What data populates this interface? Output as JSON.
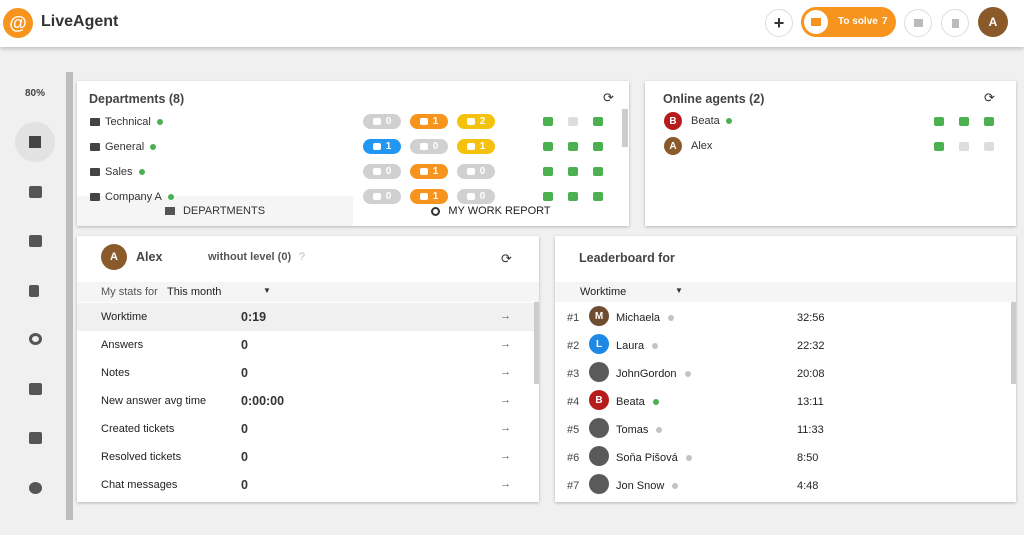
{
  "header": {
    "logo": "LiveAgent",
    "to_solve": "To solve",
    "to_solve_count": 7,
    "avatar": "A"
  },
  "sidebar": {
    "zoom": "80%"
  },
  "departments": {
    "title": "Departments (8)",
    "rows": [
      {
        "name": "Technical",
        "chats": 0,
        "calls": 1,
        "emails": 2
      },
      {
        "name": "General",
        "chats": 1,
        "calls": 0,
        "emails": 1
      },
      {
        "name": "Sales",
        "chats": 0,
        "calls": 1,
        "emails": 0
      },
      {
        "name": "Company A",
        "chats": 0,
        "calls": 1,
        "emails": 0
      }
    ],
    "tabs": [
      "DEPARTMENTS",
      "MY WORK REPORT"
    ]
  },
  "online_agents": {
    "title": "Online agents (2)",
    "agents": [
      {
        "initial": "B",
        "name": "Beata"
      },
      {
        "initial": "A",
        "name": "Alex"
      }
    ]
  },
  "stats": {
    "initial": "A",
    "name": "Alex",
    "level": "without level (0)",
    "help": "?",
    "period_label": "My stats for",
    "period": "This month",
    "rows": [
      [
        "Worktime",
        "0:19"
      ],
      [
        "Answers",
        "0"
      ],
      [
        "Notes",
        "0"
      ],
      [
        "New answer avg time",
        "0:00:00"
      ],
      [
        "Created tickets",
        "0"
      ],
      [
        "Resolved tickets",
        "0"
      ],
      [
        "Chat messages",
        "0"
      ]
    ]
  },
  "leaderboard": {
    "title": "Leaderboard for",
    "metric": "Worktime",
    "rows": [
      {
        "rank": "#1",
        "initial": "M",
        "name": "Michaela",
        "value": "32:56",
        "online": false
      },
      {
        "rank": "#2",
        "initial": "L",
        "name": "Laura",
        "value": "22:32",
        "online": false
      },
      {
        "rank": "#3",
        "name": "JohnGordon",
        "value": "20:08",
        "online": false
      },
      {
        "rank": "#4",
        "initial": "B",
        "name": "Beata",
        "value": "13:11",
        "online": true
      },
      {
        "rank": "#5",
        "name": "Tomas",
        "value": "11:33",
        "online": false
      },
      {
        "rank": "#6",
        "name": "Soňa Pišová",
        "value": "8:50",
        "online": false
      },
      {
        "rank": "#7",
        "name": "Jon Snow",
        "value": "4:48",
        "online": false
      }
    ]
  }
}
